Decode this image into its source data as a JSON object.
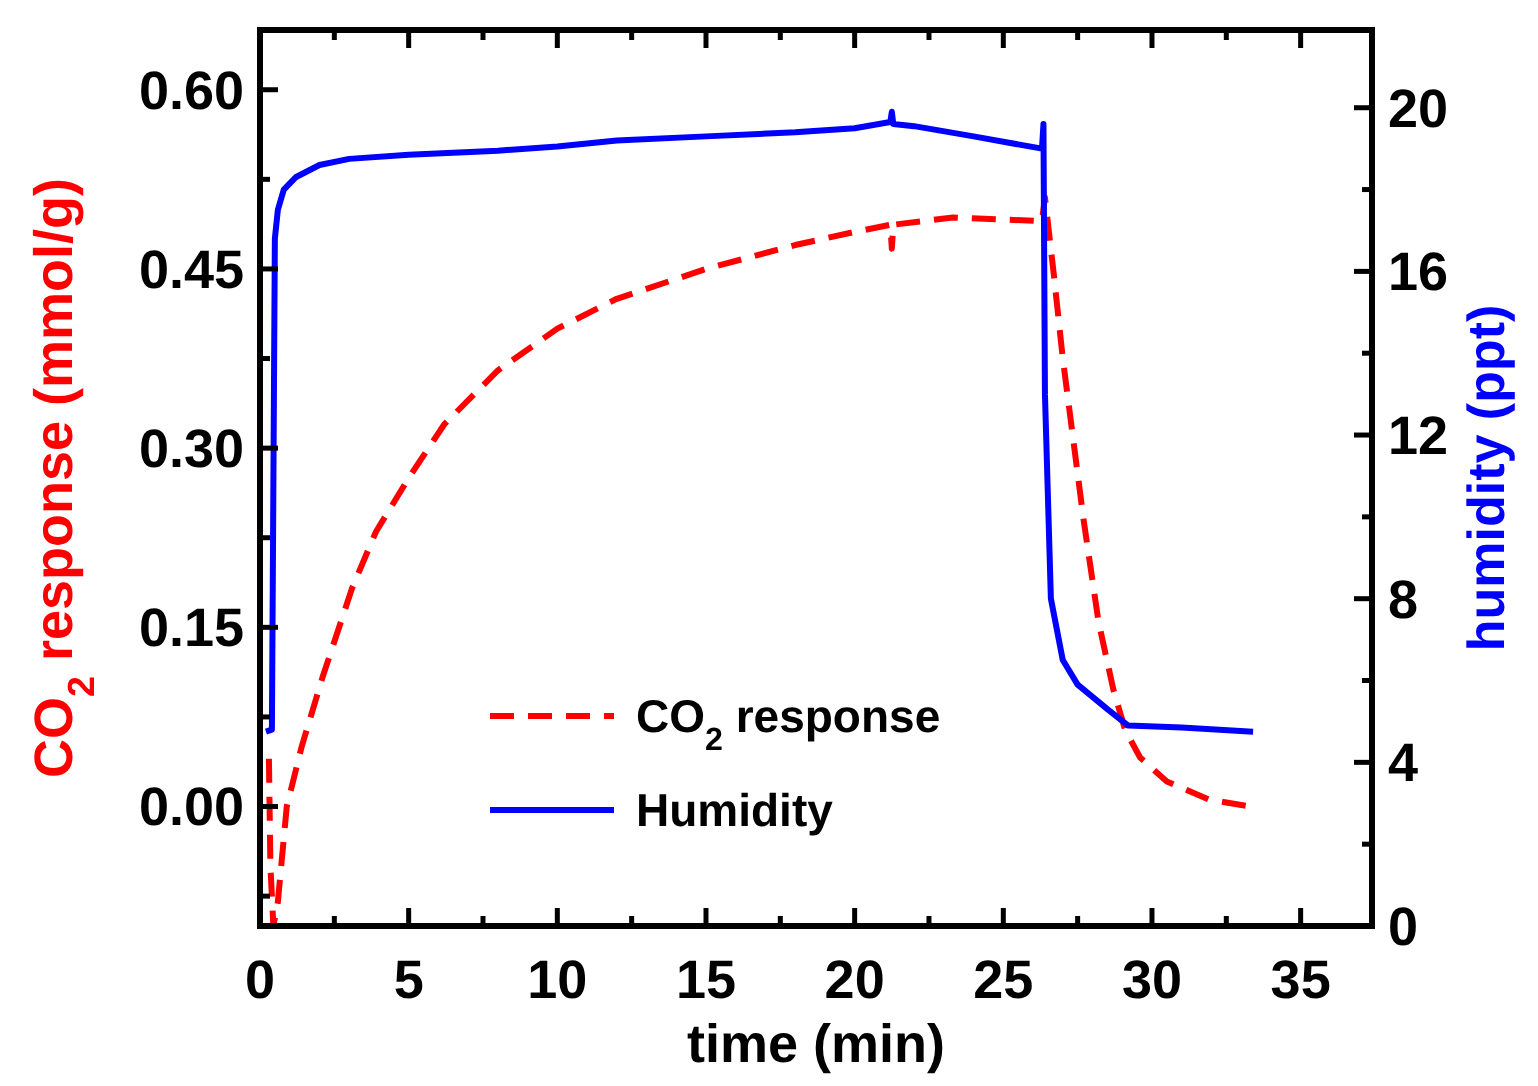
{
  "chart_data": {
    "type": "line",
    "xlabel": "time (min)",
    "ylabel": "CO$_{2}$ response (mmol/g)",
    "y2label": "humidity (ppt)",
    "xlim": [
      0,
      37.4
    ],
    "ylim": [
      -0.1,
      0.65
    ],
    "y2lim": [
      0,
      21.9
    ],
    "xticks": [
      0,
      {
        "value": 2.5,
        "label": null
      },
      5,
      {
        "value": 7.5,
        "label": null
      },
      10,
      {
        "value": 12.5,
        "label": null
      },
      15,
      {
        "value": 17.5,
        "label": null
      },
      20,
      {
        "value": 22.5,
        "label": null
      },
      25,
      {
        "value": 27.5,
        "label": null
      },
      30,
      {
        "value": 32.5,
        "label": null
      },
      35
    ],
    "yticks": [
      {
        "value": -0.075,
        "label": null
      },
      {
        "value": 0,
        "label": "0.00"
      },
      {
        "value": 0.075,
        "label": null
      },
      {
        "value": 0.15,
        "label": "0.15"
      },
      {
        "value": 0.225,
        "label": null
      },
      {
        "value": 0.3,
        "label": "0.30"
      },
      {
        "value": 0.375,
        "label": null
      },
      {
        "value": 0.45,
        "label": "0.45"
      },
      {
        "value": 0.525,
        "label": null
      },
      {
        "value": 0.6,
        "label": "0.60"
      }
    ],
    "y2ticks": [
      0,
      {
        "value": 2,
        "label": null
      },
      4,
      {
        "value": 6,
        "label": null
      },
      8,
      {
        "value": 10,
        "label": null
      },
      12,
      {
        "value": 14,
        "label": null
      },
      16,
      {
        "value": 18,
        "label": null
      },
      20
    ],
    "legend": "bottom",
    "series": [
      {
        "name": "CO$_{2}$ response",
        "color": "#ff0000",
        "line_style": "dashed",
        "axis": "y",
        "x": [
          0.3,
          0.35,
          0.45,
          0.6,
          0.9,
          1.4,
          2.1,
          3.1,
          3.9,
          5.0,
          6.2,
          8.0,
          10.0,
          12.0,
          15.0,
          18.0,
          20.0,
          21.2,
          21.25,
          21.3,
          23.3,
          26.3,
          26.4,
          26.7,
          27.0,
          27.7,
          28.2,
          28.7,
          29.1,
          29.6,
          30.5,
          31.9,
          33.3
        ],
        "values": [
          0.04,
          -0.05,
          -0.1,
          -0.08,
          0.0,
          0.05,
          0.108,
          0.183,
          0.23,
          0.275,
          0.32,
          0.365,
          0.4,
          0.425,
          0.45,
          0.47,
          0.481,
          0.487,
          0.467,
          0.487,
          0.493,
          0.49,
          0.51,
          0.445,
          0.375,
          0.24,
          0.155,
          0.098,
          0.064,
          0.041,
          0.021,
          0.006,
          0.0
        ]
      },
      {
        "name": "Humidity",
        "color": "#0000ff",
        "line_style": "solid",
        "axis": "y2",
        "x": [
          0.2,
          0.4,
          0.5,
          0.6,
          0.8,
          1.2,
          2,
          3,
          5,
          8,
          10,
          12,
          15,
          18,
          20,
          21.2,
          21.25,
          21.3,
          22,
          24,
          26.3,
          26.35,
          26.4,
          26.6,
          27,
          27.5,
          28.5,
          29.2,
          31,
          33.4
        ],
        "values": [
          4.75,
          4.8,
          16.8,
          17.5,
          18.0,
          18.3,
          18.6,
          18.75,
          18.85,
          18.95,
          19.05,
          19.2,
          19.3,
          19.4,
          19.5,
          19.65,
          19.9,
          19.6,
          19.55,
          19.3,
          19.0,
          19.6,
          13,
          8,
          6.5,
          5.9,
          5.3,
          4.9,
          4.85,
          4.75
        ]
      }
    ]
  }
}
